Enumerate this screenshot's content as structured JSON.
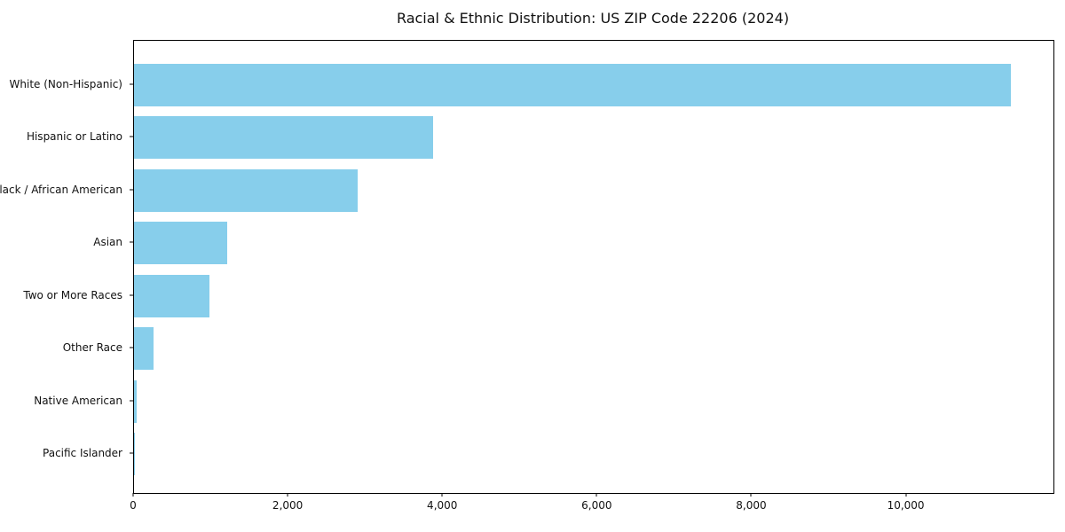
{
  "chart_data": {
    "type": "bar",
    "orientation": "horizontal",
    "title": "Racial & Ethnic Distribution: US ZIP Code 22206 (2024)",
    "categories": [
      "White (Non-Hispanic)",
      "Hispanic or Latino",
      "Black / African American",
      "Asian",
      "Two or More Races",
      "Other Race",
      "Native American",
      "Pacific Islander"
    ],
    "values": [
      11350,
      3870,
      2890,
      1210,
      980,
      250,
      30,
      5
    ],
    "xlabel": "",
    "ylabel": "",
    "xlim": [
      0,
      11900
    ],
    "xticks": [
      0,
      2000,
      4000,
      6000,
      8000,
      10000
    ],
    "xtick_labels": [
      "0",
      "2,000",
      "4,000",
      "6,000",
      "8,000",
      "10,000"
    ],
    "bar_color": "#87CEEB",
    "grid": false,
    "legend": null
  }
}
